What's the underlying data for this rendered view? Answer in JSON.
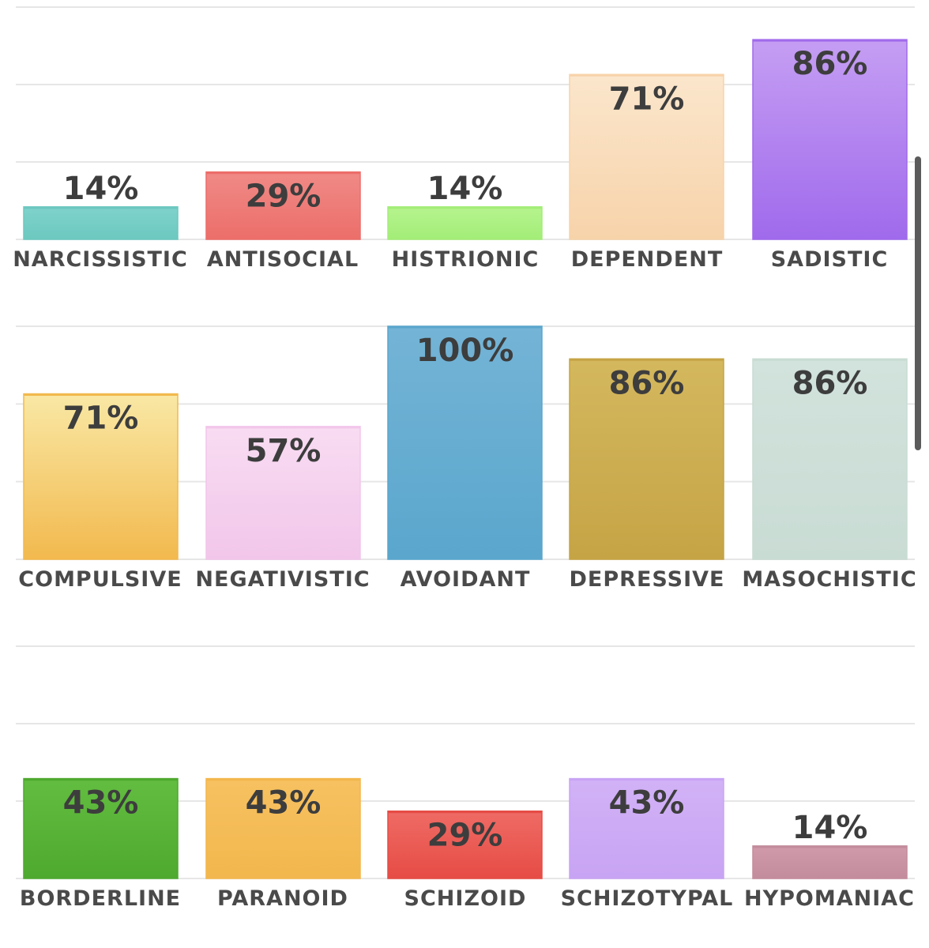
{
  "chart_data": [
    {
      "type": "bar",
      "ylim": [
        0,
        100
      ],
      "grid": true,
      "categories": [
        "NARCISSISTIC",
        "ANTISOCIAL",
        "HISTRIONIC",
        "DEPENDENT",
        "SADISTIC"
      ],
      "values": [
        14,
        29,
        14,
        71,
        86
      ],
      "value_labels": [
        "14%",
        "29%",
        "14%",
        "71%",
        "86%"
      ],
      "colors": [
        [
          "#7fd3cc",
          "#6cc8c0"
        ],
        [
          "#f08a86",
          "#ec6e6a"
        ],
        [
          "#b6f48e",
          "#a3ed78"
        ],
        [
          "#fbe6cc",
          "#f7d3aa"
        ],
        [
          "#c59ef3",
          "#a06aec"
        ]
      ]
    },
    {
      "type": "bar",
      "ylim": [
        0,
        100
      ],
      "grid": true,
      "categories": [
        "COMPULSIVE",
        "NEGATIVISTIC",
        "AVOIDANT",
        "DEPRESSIVE",
        "MASOCHISTIC"
      ],
      "values": [
        71,
        57,
        100,
        86,
        86
      ],
      "value_labels": [
        "71%",
        "57%",
        "100%",
        "86%",
        "86%"
      ],
      "colors": [
        [
          "#f9e8a5",
          "#f2b94e"
        ],
        [
          "#f8dcf2",
          "#f2c6ea"
        ],
        [
          "#74b4d6",
          "#5aa6cd"
        ],
        [
          "#d4b85e",
          "#c5a445"
        ],
        [
          "#d2e2dc",
          "#c9dcd4"
        ]
      ]
    },
    {
      "type": "bar",
      "ylim": [
        0,
        100
      ],
      "grid": true,
      "categories": [
        "BORDERLINE",
        "PARANOID",
        "SCHIZOID",
        "SCHIZOTYPAL",
        "HYPOMANIAC"
      ],
      "values": [
        43,
        43,
        29,
        43,
        14
      ],
      "value_labels": [
        "43%",
        "43%",
        "29%",
        "43%",
        "14%"
      ],
      "colors": [
        [
          "#62bd40",
          "#4ea92f"
        ],
        [
          "#f7c161",
          "#f2b74d"
        ],
        [
          "#ef6b65",
          "#e64c45"
        ],
        [
          "#d2b2f6",
          "#c8a4f4"
        ],
        [
          "#d19aaa",
          "#c38c9c"
        ]
      ]
    }
  ]
}
